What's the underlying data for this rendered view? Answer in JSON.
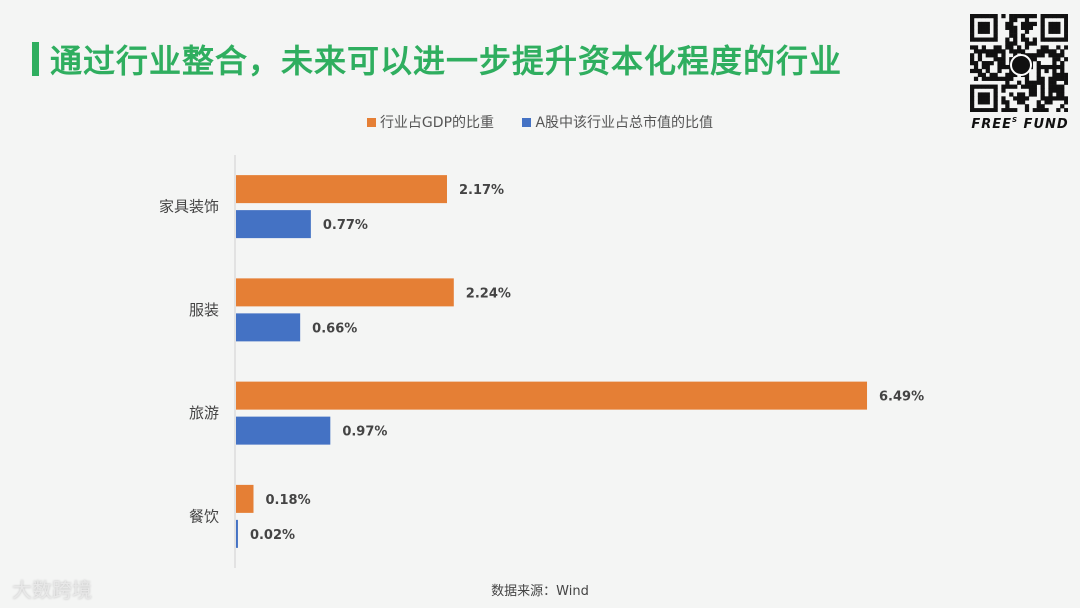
{
  "title": "通过行业整合，未来可以进一步提升资本化程度的行业",
  "brand": {
    "text": "FREE",
    "sup": "S",
    "suffix": " FUND"
  },
  "qr_logo_text": "FREES",
  "source": "数据来源：Wind",
  "watermark": "大数跨境",
  "colors": {
    "accent": "#2fae5f",
    "orange": "#e57f35",
    "blue": "#4472c4"
  },
  "chart_data": {
    "type": "bar",
    "orientation": "horizontal",
    "categories": [
      "家具装饰",
      "服装",
      "旅游",
      "餐饮"
    ],
    "series": [
      {
        "name": "行业占GDP的比重",
        "color": "#e57f35",
        "values": [
          2.17,
          2.24,
          6.49,
          0.18
        ],
        "labels": [
          "2.17%",
          "2.24%",
          "6.49%",
          "0.18%"
        ]
      },
      {
        "name": "A股中该行业占总市值的比值",
        "color": "#4472c4",
        "values": [
          0.77,
          0.66,
          0.97,
          0.02
        ],
        "labels": [
          "0.77%",
          "0.66%",
          "0.97%",
          "0.02%"
        ]
      }
    ],
    "xlim": [
      0,
      6.5
    ],
    "legend": "top-center",
    "grid": false
  }
}
